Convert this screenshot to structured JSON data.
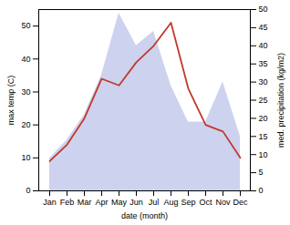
{
  "chart_data": {
    "type": "line",
    "categories": [
      "Jan",
      "Feb",
      "Mar",
      "Apr",
      "May",
      "Jun",
      "Jul",
      "Aug",
      "Sep",
      "Oct",
      "Nov",
      "Dec"
    ],
    "series": [
      {
        "type": "area",
        "color": "#b8bfe8",
        "axis": "y2",
        "values": [
          9,
          14,
          21,
          32,
          49,
          40,
          44,
          29,
          19,
          19,
          30,
          15
        ]
      },
      {
        "type": "line",
        "color": "#c0392b",
        "values": [
          9,
          14,
          22,
          34,
          32,
          39,
          44,
          51,
          31,
          20,
          18,
          10
        ]
      }
    ],
    "xlabel": "date (month)",
    "ylabel": "max temp (C)",
    "y2label": "med. precipitation (kg/m2)",
    "ylim": [
      0,
      55
    ],
    "yticks": [
      0,
      10,
      20,
      30,
      40,
      50
    ],
    "y2lim": [
      0,
      50
    ],
    "y2ticks": [
      0,
      5,
      10,
      15,
      20,
      25,
      30,
      35,
      40,
      45,
      50
    ]
  }
}
